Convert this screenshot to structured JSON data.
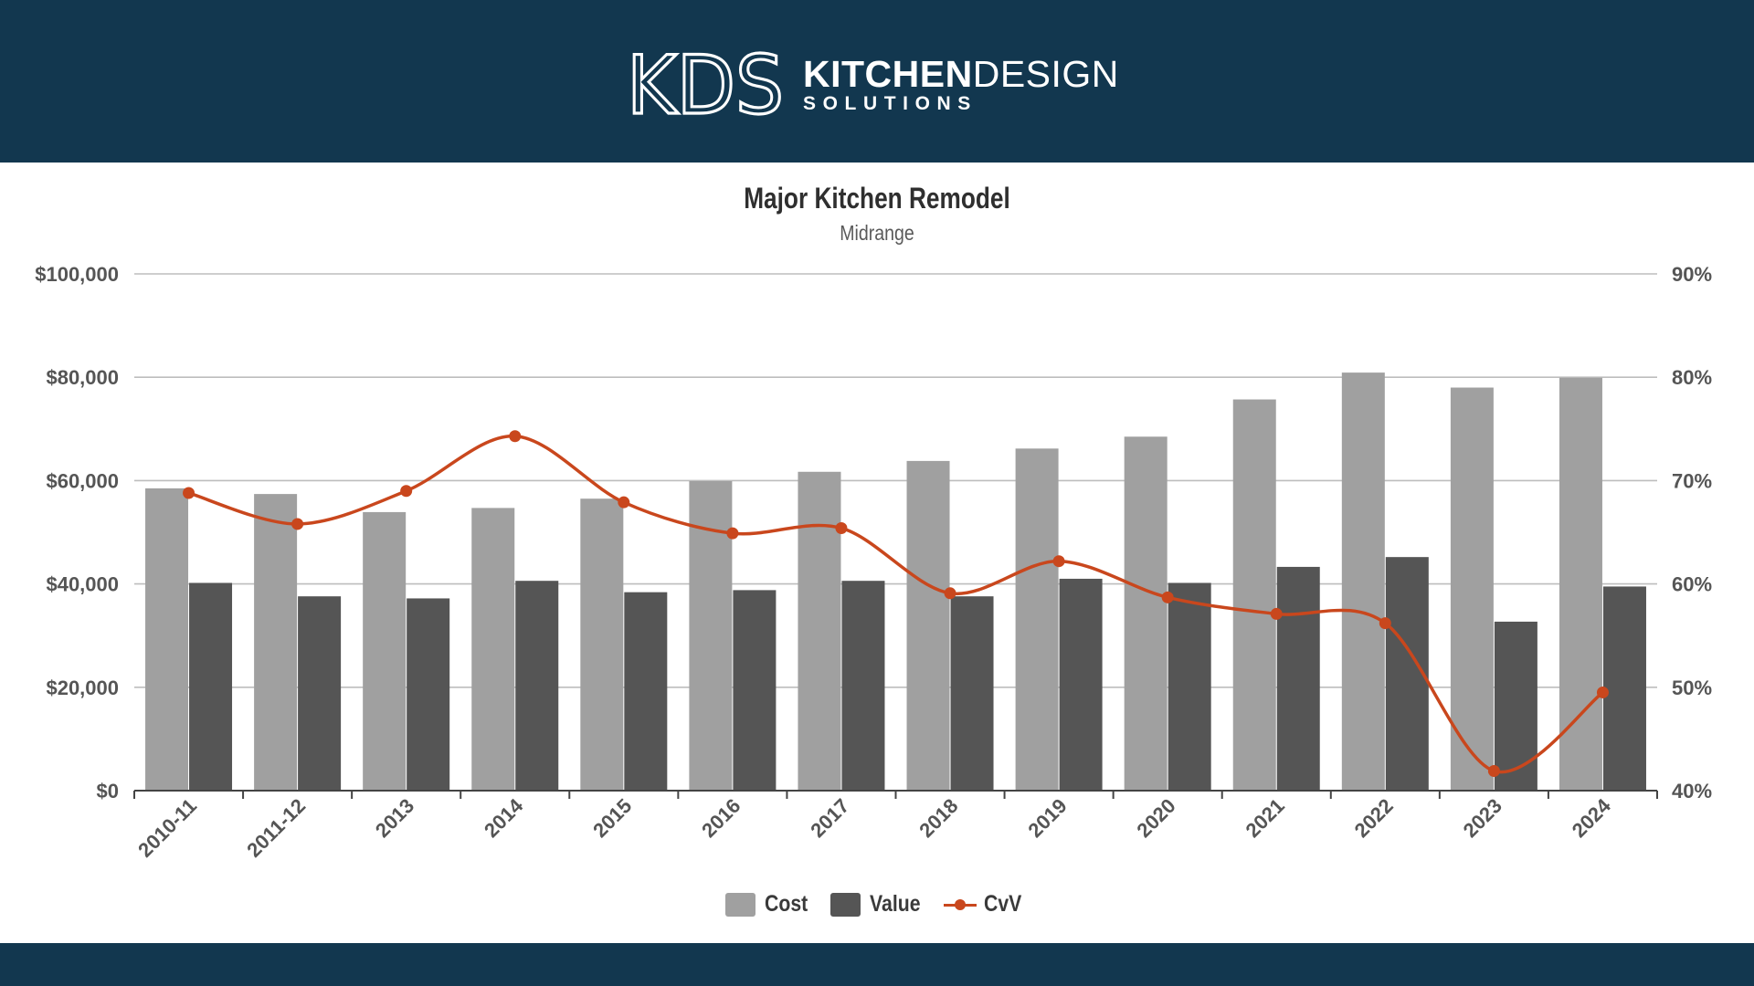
{
  "header": {
    "logo_mark": "KDS",
    "brand_strong": "KITCHEN",
    "brand_light": "DESIGN",
    "brand_sub": "SOLUTIONS"
  },
  "chart_data": {
    "type": "bar",
    "title": "Major Kitchen Remodel",
    "subtitle": "Midrange",
    "categories": [
      "2010-11",
      "2011-12",
      "2013",
      "2014",
      "2015",
      "2016",
      "2017",
      "2018",
      "2019",
      "2020",
      "2021",
      "2022",
      "2023",
      "2024"
    ],
    "series": [
      {
        "name": "Cost",
        "type": "bar",
        "axis": "left",
        "color": "#a0a0a0",
        "values": [
          58500,
          57400,
          53900,
          54700,
          56500,
          59900,
          61700,
          63800,
          66200,
          68500,
          75700,
          80900,
          78000,
          79900
        ]
      },
      {
        "name": "Value",
        "type": "bar",
        "axis": "left",
        "color": "#555555",
        "values": [
          40200,
          37600,
          37200,
          40600,
          38400,
          38800,
          40600,
          37600,
          41000,
          40200,
          43300,
          45200,
          32700,
          39500
        ]
      },
      {
        "name": "CvV",
        "type": "line",
        "axis": "right",
        "color": "#c9471d",
        "values": [
          68.8,
          65.8,
          69.0,
          74.3,
          67.9,
          64.9,
          65.4,
          59.1,
          62.2,
          58.7,
          57.1,
          56.2,
          41.9,
          49.5
        ]
      }
    ],
    "y_left": {
      "min": 0,
      "max": 100000,
      "ticks": [
        "$0",
        "$20,000",
        "$40,000",
        "$60,000",
        "$80,000",
        "$100,000"
      ]
    },
    "y_right": {
      "min": 40,
      "max": 90,
      "ticks": [
        "40%",
        "50%",
        "60%",
        "70%",
        "80%",
        "90%"
      ]
    },
    "grid": true,
    "legend_position": "bottom"
  },
  "legend": {
    "cost": "Cost",
    "value": "Value",
    "cvv": "CvV"
  }
}
